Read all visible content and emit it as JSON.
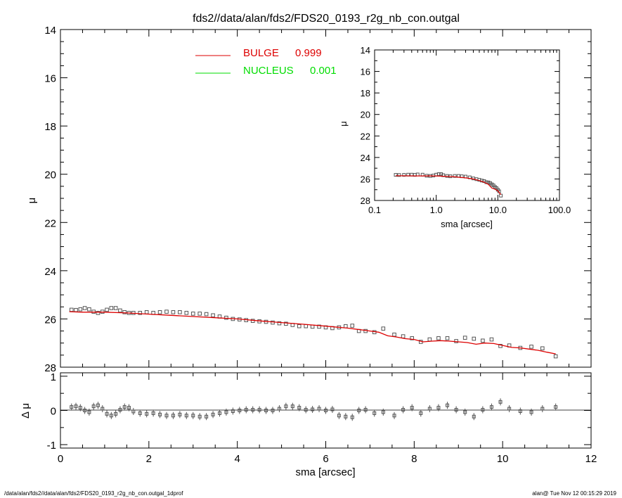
{
  "title": "fds2//data/alan/fds2/FDS20_0193_r2g_nb_con.outgal",
  "footer_left": "/data/alan/fds2//data/alan/fds2/FDS20_0193_r2g_nb_con.outgal_1dprof",
  "footer_right": "alan@  Tue Nov 12 00:15:29 2019",
  "colors": {
    "bulge": "#dd0000",
    "nucleus": "#00dd00",
    "data": "#555555",
    "axis": "#000000"
  },
  "legend": [
    {
      "label": "BULGE",
      "value": "0.999",
      "color": "#dd0000"
    },
    {
      "label": "NUCLEUS",
      "value": "0.001",
      "color": "#00dd00"
    }
  ],
  "chart_data": [
    {
      "id": "main",
      "type": "scatter",
      "xlabel": "",
      "ylabel": "μ",
      "xlim": [
        0,
        12
      ],
      "ylim": [
        28,
        14
      ],
      "y_inverted": true,
      "yticks": [
        "14",
        "16",
        "18",
        "20",
        "22",
        "24",
        "26",
        "28"
      ],
      "series": [
        {
          "name": "data",
          "marker": "square",
          "x": [
            0.25,
            0.35,
            0.45,
            0.55,
            0.65,
            0.75,
            0.85,
            0.95,
            1.05,
            1.15,
            1.25,
            1.35,
            1.45,
            1.55,
            1.65,
            1.8,
            1.95,
            2.1,
            2.25,
            2.4,
            2.55,
            2.7,
            2.85,
            3.0,
            3.15,
            3.3,
            3.45,
            3.6,
            3.75,
            3.9,
            4.05,
            4.2,
            4.35,
            4.5,
            4.65,
            4.8,
            4.95,
            5.1,
            5.25,
            5.4,
            5.55,
            5.7,
            5.85,
            6.0,
            6.15,
            6.3,
            6.45,
            6.6,
            6.75,
            6.9,
            7.1,
            7.3,
            7.55,
            7.75,
            7.95,
            8.15,
            8.35,
            8.55,
            8.75,
            8.95,
            9.15,
            9.35,
            9.55,
            9.75,
            9.95,
            10.15,
            10.4,
            10.65,
            10.9,
            11.2
          ],
          "y": [
            25.62,
            25.63,
            25.6,
            25.55,
            25.6,
            25.7,
            25.75,
            25.7,
            25.62,
            25.55,
            25.55,
            25.65,
            25.72,
            25.75,
            25.75,
            25.75,
            25.72,
            25.75,
            25.72,
            25.7,
            25.72,
            25.72,
            25.75,
            25.78,
            25.78,
            25.8,
            25.85,
            25.9,
            25.95,
            26.0,
            26.02,
            26.05,
            26.08,
            26.1,
            26.12,
            26.15,
            26.18,
            26.2,
            26.25,
            26.3,
            26.3,
            26.32,
            26.32,
            26.35,
            26.38,
            26.35,
            26.3,
            26.28,
            26.5,
            26.5,
            26.55,
            26.4,
            26.65,
            26.72,
            26.8,
            26.95,
            26.85,
            26.8,
            26.8,
            26.92,
            26.78,
            26.82,
            26.9,
            26.85,
            27.12,
            27.1,
            27.2,
            27.15,
            27.22,
            27.55
          ]
        },
        {
          "name": "BULGE",
          "type": "line",
          "x": [
            0.2,
            0.5,
            1.0,
            1.5,
            2.0,
            2.5,
            3.0,
            3.5,
            4.0,
            4.5,
            5.0,
            5.5,
            6.0,
            6.5,
            6.8,
            7.0,
            7.2,
            7.4,
            7.6,
            7.8,
            8.0,
            8.2,
            8.4,
            8.6,
            8.8,
            9.0,
            9.2,
            9.4,
            9.6,
            9.8,
            10.0,
            10.2,
            10.4,
            10.6,
            10.8,
            11.0,
            11.2
          ],
          "y": [
            25.7,
            25.72,
            25.72,
            25.75,
            25.8,
            25.85,
            25.9,
            25.95,
            26.0,
            26.08,
            26.15,
            26.22,
            26.3,
            26.38,
            26.45,
            26.5,
            26.55,
            26.7,
            26.75,
            26.82,
            26.85,
            26.95,
            26.92,
            26.9,
            26.92,
            26.95,
            26.98,
            27.05,
            27.0,
            27.02,
            27.1,
            27.18,
            27.2,
            27.25,
            27.3,
            27.38,
            27.45
          ]
        }
      ]
    },
    {
      "id": "residual",
      "type": "scatter",
      "xlabel": "sma [arcsec]",
      "ylabel": "Δ μ",
      "xlim": [
        0,
        12
      ],
      "ylim": [
        -1.1,
        1.1
      ],
      "xticks": [
        "0",
        "2",
        "4",
        "6",
        "8",
        "10",
        "12"
      ],
      "yticks": [
        "-1",
        "0",
        "1"
      ],
      "series": [
        {
          "name": "residual",
          "marker": "square-errorbar",
          "x": [
            0.25,
            0.35,
            0.45,
            0.55,
            0.65,
            0.75,
            0.85,
            0.95,
            1.05,
            1.15,
            1.25,
            1.35,
            1.45,
            1.55,
            1.65,
            1.8,
            1.95,
            2.1,
            2.25,
            2.4,
            2.55,
            2.7,
            2.85,
            3.0,
            3.15,
            3.3,
            3.45,
            3.6,
            3.75,
            3.9,
            4.05,
            4.2,
            4.35,
            4.5,
            4.65,
            4.8,
            4.95,
            5.1,
            5.25,
            5.4,
            5.55,
            5.7,
            5.85,
            6.0,
            6.15,
            6.3,
            6.45,
            6.6,
            6.75,
            6.9,
            7.1,
            7.3,
            7.55,
            7.75,
            7.95,
            8.15,
            8.35,
            8.55,
            8.75,
            8.95,
            9.15,
            9.35,
            9.55,
            9.75,
            9.95,
            10.15,
            10.4,
            10.65,
            10.9,
            11.2
          ],
          "y": [
            0.1,
            0.12,
            0.08,
            0.0,
            -0.05,
            0.12,
            0.15,
            0.05,
            -0.1,
            -0.15,
            -0.1,
            0.02,
            0.1,
            0.08,
            -0.03,
            -0.08,
            -0.1,
            -0.08,
            -0.12,
            -0.15,
            -0.15,
            -0.12,
            -0.15,
            -0.15,
            -0.18,
            -0.18,
            -0.12,
            -0.08,
            -0.05,
            -0.02,
            0.0,
            0.02,
            0.02,
            0.02,
            0.0,
            0.0,
            0.05,
            0.12,
            0.12,
            0.08,
            0.02,
            0.03,
            0.05,
            0.0,
            0.03,
            -0.15,
            -0.18,
            -0.2,
            0.0,
            0.02,
            -0.08,
            -0.05,
            -0.15,
            0.02,
            0.08,
            -0.08,
            0.05,
            0.08,
            0.15,
            0.02,
            -0.05,
            -0.18,
            0.02,
            0.1,
            0.25,
            0.05,
            -0.02,
            -0.05,
            0.05,
            0.1
          ]
        }
      ]
    },
    {
      "id": "inset",
      "type": "scatter",
      "xlabel": "sma [arcsec]",
      "ylabel": "μ",
      "xscale": "log",
      "xlim": [
        0.1,
        100
      ],
      "ylim": [
        28,
        14
      ],
      "y_inverted": true,
      "xticks": [
        "0.1",
        "1.0",
        "10.0",
        "100.0"
      ],
      "yticks": [
        "14",
        "16",
        "18",
        "20",
        "22",
        "24",
        "26",
        "28"
      ],
      "series": [
        {
          "name": "data",
          "marker": "square",
          "x": [
            0.22,
            0.25,
            0.3,
            0.35,
            0.4,
            0.45,
            0.5,
            0.6,
            0.7,
            0.8,
            0.9,
            1.0,
            1.1,
            1.2,
            1.3,
            1.5,
            1.7,
            2.0,
            2.3,
            2.6,
            3.0,
            3.5,
            4.0,
            4.5,
            5.0,
            5.5,
            6.0,
            6.5,
            7.0,
            7.5,
            8.0,
            8.5,
            9.0,
            9.5,
            10.0,
            10.5,
            11.2
          ],
          "y": [
            25.62,
            25.63,
            25.62,
            25.6,
            25.6,
            25.62,
            25.58,
            25.6,
            25.7,
            25.72,
            25.68,
            25.6,
            25.55,
            25.55,
            25.65,
            25.72,
            25.75,
            25.72,
            25.72,
            25.75,
            25.78,
            25.85,
            25.95,
            26.02,
            26.08,
            26.15,
            26.2,
            26.3,
            26.32,
            26.38,
            26.5,
            26.6,
            26.75,
            26.85,
            27.0,
            27.15,
            27.55
          ]
        },
        {
          "name": "BULGE",
          "type": "line",
          "x": [
            0.22,
            0.5,
            1.0,
            2.0,
            3.0,
            4.0,
            5.0,
            6.0,
            7.0,
            8.0,
            9.0,
            10.0,
            11.2
          ],
          "y": [
            25.7,
            25.72,
            25.72,
            25.8,
            25.9,
            26.0,
            26.15,
            26.3,
            26.5,
            26.85,
            26.95,
            27.1,
            27.45
          ]
        }
      ]
    }
  ]
}
